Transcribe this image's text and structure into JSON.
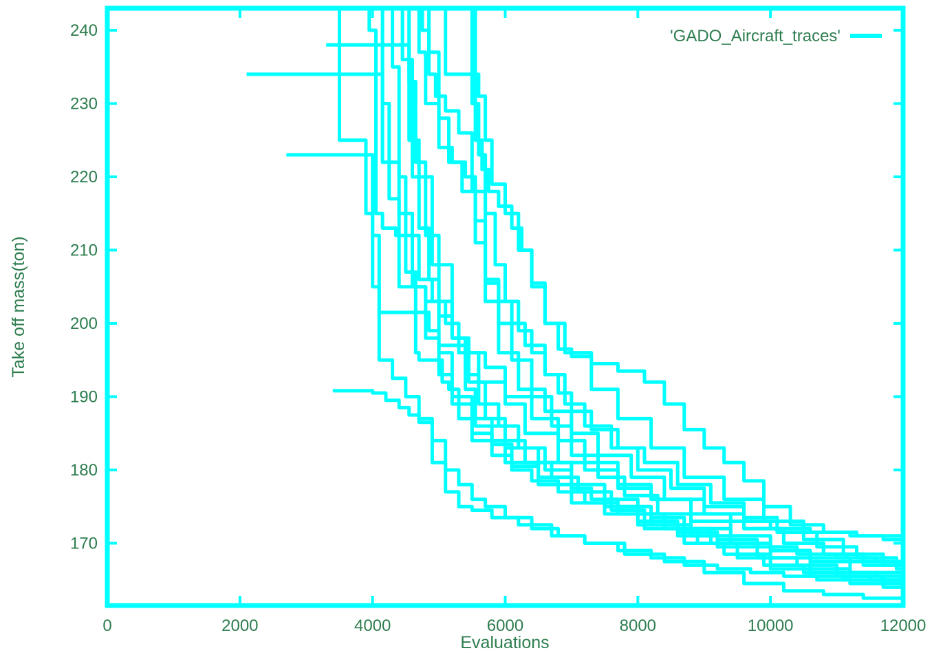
{
  "chart_data": {
    "type": "line",
    "title": "",
    "xlabel": "Evaluations",
    "ylabel": "Take off mass(ton)",
    "xlim": [
      0,
      12000
    ],
    "ylim": [
      161.5,
      243
    ],
    "xticks": [
      0,
      2000,
      4000,
      6000,
      8000,
      10000,
      12000
    ],
    "yticks": [
      170,
      180,
      190,
      200,
      210,
      220,
      230,
      240
    ],
    "grid": false,
    "legend": {
      "placement": "top-right",
      "entries": [
        "'GADO_Aircraft_traces'"
      ]
    },
    "colors": {
      "series": "#00ffff",
      "text": "#2e7d4f"
    },
    "series": [
      {
        "x": [
          2100,
          4050,
          4150,
          4400,
          4650,
          4700,
          5050,
          5150,
          5300,
          5500,
          6000,
          6500,
          7000,
          7300,
          7700,
          8200,
          8700,
          9100,
          9500,
          10000,
          10500,
          11000,
          11500,
          12000
        ],
        "y": [
          234,
          234,
          222,
          205,
          196,
          195,
          192,
          191,
          187,
          184,
          181,
          179,
          177.5,
          176,
          175,
          173.5,
          172,
          170,
          168.5,
          167,
          166,
          165.5,
          165,
          164.5
        ]
      },
      {
        "x": [
          2700,
          3900,
          4000,
          4100,
          4300,
          4700,
          4850,
          5000,
          5400,
          5700,
          6000,
          6300,
          6800,
          7200,
          7700,
          8200,
          8800,
          9400,
          10000,
          10600,
          11200,
          12000
        ],
        "y": [
          223,
          223,
          212,
          201.5,
          201.5,
          201.5,
          199,
          197,
          196,
          194,
          189,
          185,
          181,
          180,
          177.5,
          176,
          174,
          173,
          172,
          171.5,
          171,
          167
        ]
      },
      {
        "x": [
          3300,
          4300,
          4450,
          4600,
          4900,
          5200,
          5400,
          5550,
          6000,
          6500,
          7000,
          7500,
          8000,
          8400,
          8900,
          9500,
          10000,
          10600,
          11200,
          12000
        ],
        "y": [
          238,
          238,
          236,
          220,
          208,
          198,
          191,
          186,
          183,
          181,
          178,
          176,
          174,
          172,
          170,
          168,
          166.5,
          165.5,
          164.5,
          164
        ]
      },
      {
        "x": [
          3400,
          3700,
          4000,
          4200,
          4400,
          4550,
          4700,
          4900,
          5100,
          5300,
          5500,
          5700,
          6000,
          6400,
          6800,
          7200,
          7700,
          8200,
          8700,
          9200,
          9700,
          10200,
          10700,
          11200,
          11700,
          12000
        ],
        "y": [
          190.8,
          190.8,
          190.5,
          189.5,
          188.5,
          187.5,
          186.5,
          184,
          180,
          178,
          176,
          175,
          173.5,
          172,
          171,
          170,
          169,
          168,
          167,
          166.5,
          166,
          165.5,
          165,
          164.5,
          164,
          163.5
        ]
      },
      {
        "x": [
          3450,
          3500,
          3550,
          3750,
          3900,
          4000,
          4100,
          4300,
          4500,
          4700,
          4900,
          5100,
          5300,
          5500,
          5800,
          6200,
          6700,
          7200,
          7800,
          8400,
          9000,
          9600,
          10200,
          10800,
          11400,
          12000
        ],
        "y": [
          243,
          225,
          225,
          225,
          215,
          205,
          195,
          192.5,
          190,
          187,
          181,
          177,
          175,
          174.5,
          173.5,
          172.5,
          171,
          170,
          168.5,
          167.5,
          166,
          164.5,
          163.5,
          163,
          162.5,
          162.3
        ]
      },
      {
        "x": [
          3900,
          3950,
          4050,
          4150,
          4350,
          4500,
          4650,
          4800,
          5000,
          5200,
          5500,
          5800,
          6100,
          6500,
          7000,
          7500,
          8000,
          8600,
          9200,
          9800,
          10400,
          11000,
          11600,
          12000
        ],
        "y": [
          243,
          240,
          215,
          213,
          212,
          207,
          205,
          203,
          196,
          190,
          187,
          183.5,
          180.5,
          178,
          175.5,
          174,
          172.5,
          171.5,
          170.5,
          169.5,
          168.5,
          168,
          167.5,
          167
        ]
      },
      {
        "x": [
          4100,
          4150,
          4250,
          4400,
          4600,
          4800,
          5000,
          5200,
          5500,
          5800,
          6100,
          6400,
          6800,
          7200,
          7700,
          8200,
          8800,
          9400,
          10000,
          10600,
          11200,
          12000
        ],
        "y": [
          243,
          230,
          217,
          215,
          205,
          198,
          193,
          189,
          185,
          182,
          180,
          178.5,
          177,
          175.5,
          174,
          172.5,
          171,
          170,
          169,
          168,
          167.5,
          167
        ]
      },
      {
        "x": [
          4200,
          4300,
          4400,
          4500,
          4700,
          4900,
          5100,
          5300,
          5600,
          6000,
          6400,
          6800,
          7200,
          7700,
          8200,
          8800,
          9400,
          10000,
          10600,
          11200,
          12000
        ],
        "y": [
          243,
          235,
          220,
          212,
          206,
          203,
          200,
          196,
          192,
          190,
          187,
          184,
          181,
          178,
          176,
          173,
          171,
          169,
          167.5,
          166,
          165
        ]
      },
      {
        "x": [
          4350,
          4450,
          4550,
          4700,
          4850,
          5000,
          5200,
          5450,
          5700,
          6000,
          6300,
          6700,
          7100,
          7600,
          8100,
          8700,
          9300,
          9900,
          10500,
          11100,
          11700,
          12000
        ],
        "y": [
          243,
          238,
          225,
          213,
          206,
          201,
          198,
          192,
          187,
          184,
          181,
          179,
          177,
          174.5,
          172,
          170,
          168.5,
          167,
          166,
          165,
          164.5,
          164
        ]
      },
      {
        "x": [
          4450,
          4550,
          4650,
          4800,
          5000,
          5200,
          5400,
          5600,
          5900,
          6200,
          6600,
          7000,
          7500,
          8000,
          8600,
          9200,
          9800,
          10400,
          11000,
          11600,
          12000
        ],
        "y": [
          243,
          233,
          222,
          212,
          203,
          198,
          193,
          189,
          186,
          183,
          180,
          177,
          175,
          173,
          171,
          169.5,
          168,
          167,
          166,
          165.5,
          165
        ]
      },
      {
        "x": [
          4600,
          4700,
          4800,
          5000,
          5200,
          5400,
          5550,
          5700,
          5900,
          6200,
          6600,
          7000,
          7400,
          7900,
          8400,
          9000,
          9600,
          10200,
          10800,
          11400,
          12000
        ],
        "y": [
          243,
          237,
          230,
          224,
          222,
          220,
          214,
          203,
          196,
          191,
          188,
          185,
          182,
          179,
          176,
          174,
          172,
          170,
          168.5,
          167,
          166
        ]
      },
      {
        "x": [
          4700,
          4750,
          4850,
          4950,
          5100,
          5300,
          5500,
          5700,
          5900,
          6100,
          6400,
          6700,
          7000,
          7400,
          7800,
          8300,
          8800,
          9400,
          10000,
          10600,
          11200,
          11700,
          12000
        ],
        "y": [
          243,
          240,
          234,
          231,
          229,
          226,
          218,
          206,
          200,
          195,
          190,
          186,
          182,
          179,
          176.5,
          174,
          172,
          170,
          168,
          166.5,
          165.5,
          165,
          164.5
        ]
      },
      {
        "x": [
          4800,
          4850,
          5000,
          5150,
          5350,
          5550,
          5700,
          5900,
          6100,
          6300,
          6600,
          6900,
          7200,
          7600,
          8000,
          8500,
          9000,
          9600,
          10200,
          10800,
          11400,
          12000
        ],
        "y": [
          243,
          237,
          228,
          222,
          218,
          211,
          205.5,
          203,
          200,
          197,
          193,
          189,
          186,
          183,
          180,
          177.5,
          175,
          172,
          170,
          168.5,
          167.5,
          167
        ]
      },
      {
        "x": [
          5000,
          5100,
          5200,
          5300,
          5450,
          5600,
          5700,
          5800,
          6000,
          6200,
          6400,
          6600,
          6900,
          7300,
          7700,
          8200,
          8700,
          9300,
          9900,
          10500,
          11100,
          11700,
          12000
        ],
        "y": [
          243,
          234,
          234,
          234,
          234,
          231,
          225,
          219,
          215,
          210,
          205.5,
          200,
          196,
          191,
          187,
          183,
          179,
          176,
          173,
          170.5,
          168.5,
          167,
          166.5
        ]
      },
      {
        "x": [
          5500,
          5550,
          5650,
          5750,
          5900,
          6100,
          6250,
          6400,
          6600,
          6800,
          7000,
          7300,
          7700,
          8100,
          8400,
          8700,
          9000,
          9300,
          9600,
          9900,
          10300,
          10800,
          11300,
          11700,
          12000
        ],
        "y": [
          243,
          225,
          221,
          218,
          216,
          213,
          210,
          205,
          200,
          196.5,
          195.5,
          194.5,
          193.5,
          192,
          189,
          185.5,
          183,
          181,
          178.5,
          175,
          172.5,
          171.5,
          171,
          170.5,
          168
        ]
      },
      {
        "x": [
          5450,
          5500,
          5600,
          5700,
          5850,
          6000,
          6200,
          6400,
          6600,
          6800,
          7000,
          7300,
          7700,
          8100,
          8600,
          9100,
          9600,
          10100,
          10700,
          11300,
          11900,
          12000
        ],
        "y": [
          243,
          230,
          223,
          215,
          208,
          203,
          199,
          196,
          193,
          190.5,
          188,
          185.5,
          183,
          181,
          178,
          175.5,
          173.5,
          171.5,
          169.5,
          168,
          166.5,
          166
        ]
      }
    ]
  }
}
